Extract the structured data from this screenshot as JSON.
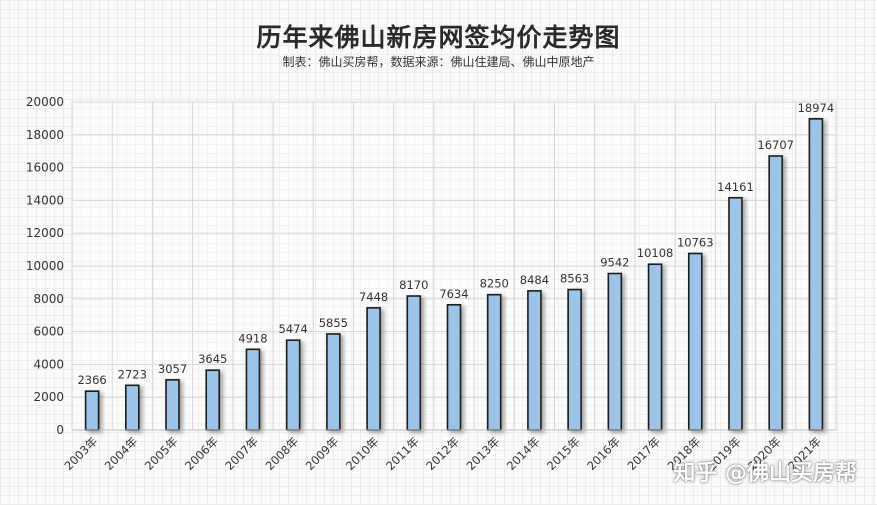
{
  "chart_data": {
    "type": "bar",
    "title": "历年来佛山新房网签均价走势图",
    "subtitle": "制表：佛山买房帮，数据来源：佛山住建局、佛山中原地产",
    "categories": [
      "2003年",
      "2004年",
      "2005年",
      "2006年",
      "2007年",
      "2008年",
      "2009年",
      "2010年",
      "2011年",
      "2012年",
      "2013年",
      "2014年",
      "2015年",
      "2016年",
      "2017年",
      "2018年",
      "2019年",
      "2020年",
      "2021年"
    ],
    "values": [
      2366,
      2723,
      3057,
      3645,
      4918,
      5474,
      5855,
      7448,
      8170,
      7634,
      8250,
      8484,
      8563,
      9542,
      10108,
      10763,
      14161,
      16707,
      18974
    ],
    "yticks": [
      0,
      2000,
      4000,
      6000,
      8000,
      10000,
      12000,
      14000,
      16000,
      18000,
      20000
    ],
    "ylim": [
      0,
      20000
    ],
    "grid": true,
    "bar_color": "#9dc3e6",
    "bar_edge": "#1a1a1a"
  },
  "watermark": "知乎 @佛山买房帮"
}
